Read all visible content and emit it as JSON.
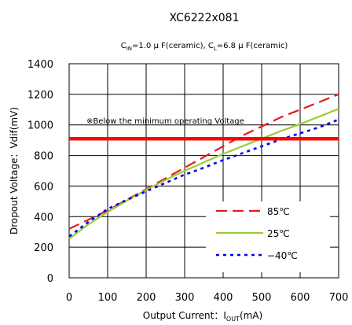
{
  "chart_data": {
    "type": "line",
    "title": "XC6222x081",
    "subtitle": {
      "cin_main": "C",
      "cin_sub": "IN",
      "cin_rest": "=1.0 μ F(ceramic), C",
      "cl_sub": "L",
      "cl_rest": "=6.8 μ F(ceramic)"
    },
    "xlabel": {
      "main": "Output Current：I",
      "sub": "OUT",
      "rest": "(mA)"
    },
    "ylabel": "Dropout Voltage：Vdif(mV)",
    "xlim": [
      0,
      700
    ],
    "ylim": [
      0,
      1400
    ],
    "xticks": [
      0,
      100,
      200,
      300,
      400,
      500,
      600,
      700
    ],
    "yticks": [
      0,
      200,
      400,
      600,
      800,
      1000,
      1200,
      1400
    ],
    "grid": true,
    "legend_position": "bottom-right",
    "threshold": {
      "value": 910,
      "color": "#ff0000",
      "label": "※Below the minimum operating Voltage"
    },
    "series": [
      {
        "name": "85℃",
        "color": "#e41a1c",
        "dash": "dashed",
        "x": [
          0,
          50,
          100,
          150,
          200,
          250,
          300,
          350,
          400,
          450,
          500,
          550,
          600,
          650,
          700
        ],
        "y": [
          320,
          380,
          440,
          510,
          580,
          650,
          720,
          790,
          860,
          930,
          990,
          1050,
          1100,
          1150,
          1200
        ]
      },
      {
        "name": "25℃",
        "color": "#99cc33",
        "dash": "solid",
        "x": [
          0,
          50,
          100,
          150,
          200,
          250,
          300,
          350,
          400,
          450,
          500,
          550,
          600,
          650,
          700
        ],
        "y": [
          255,
          350,
          430,
          505,
          575,
          640,
          700,
          755,
          810,
          860,
          910,
          960,
          1005,
          1055,
          1105
        ]
      },
      {
        "name": "−40℃",
        "color": "#0000ee",
        "dash": "dotted",
        "x": [
          0,
          50,
          100,
          150,
          200,
          250,
          300,
          350,
          400,
          450,
          500,
          550,
          600,
          650,
          700
        ],
        "y": [
          270,
          365,
          450,
          510,
          565,
          620,
          675,
          720,
          770,
          815,
          860,
          905,
          945,
          985,
          1035
        ]
      }
    ]
  }
}
